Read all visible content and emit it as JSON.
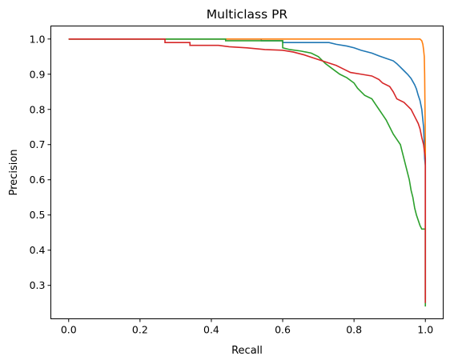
{
  "chart_data": {
    "type": "line",
    "title": "Multiclass PR",
    "xlabel": "Recall",
    "ylabel": "Precision",
    "xlim": [
      -0.05,
      1.05
    ],
    "ylim": [
      0.205,
      1.037
    ],
    "xticks": [
      "0.0",
      "0.2",
      "0.4",
      "0.6",
      "0.8",
      "1.0"
    ],
    "yticks": [
      "0.3",
      "0.4",
      "0.5",
      "0.6",
      "0.7",
      "0.8",
      "0.9",
      "1.0"
    ],
    "grid": false,
    "legend": "none",
    "series": [
      {
        "color": "#1f77b4",
        "points": [
          [
            0.0,
            1.0
          ],
          [
            0.54,
            1.0
          ],
          [
            0.54,
            0.995
          ],
          [
            0.6,
            0.995
          ],
          [
            0.6,
            0.99
          ],
          [
            0.73,
            0.99
          ],
          [
            0.75,
            0.985
          ],
          [
            0.78,
            0.98
          ],
          [
            0.8,
            0.975
          ],
          [
            0.82,
            0.968
          ],
          [
            0.85,
            0.96
          ],
          [
            0.87,
            0.952
          ],
          [
            0.89,
            0.945
          ],
          [
            0.91,
            0.938
          ],
          [
            0.92,
            0.93
          ],
          [
            0.93,
            0.92
          ],
          [
            0.94,
            0.91
          ],
          [
            0.95,
            0.9
          ],
          [
            0.96,
            0.888
          ],
          [
            0.97,
            0.87
          ],
          [
            0.975,
            0.858
          ],
          [
            0.98,
            0.84
          ],
          [
            0.985,
            0.825
          ],
          [
            0.99,
            0.8
          ],
          [
            0.992,
            0.78
          ],
          [
            0.995,
            0.75
          ],
          [
            0.997,
            0.7
          ],
          [
            0.998,
            0.66
          ],
          [
            1.0,
            0.64
          ],
          [
            1.0,
            0.25
          ]
        ]
      },
      {
        "color": "#ff7f0e",
        "points": [
          [
            0.0,
            1.0
          ],
          [
            0.985,
            1.0
          ],
          [
            0.99,
            0.995
          ],
          [
            0.993,
            0.985
          ],
          [
            0.995,
            0.97
          ],
          [
            0.997,
            0.95
          ],
          [
            0.998,
            0.9
          ],
          [
            0.999,
            0.8
          ],
          [
            1.0,
            0.7
          ],
          [
            1.0,
            0.26
          ]
        ]
      },
      {
        "color": "#2ca02c",
        "points": [
          [
            0.0,
            1.0
          ],
          [
            0.44,
            1.0
          ],
          [
            0.44,
            0.995
          ],
          [
            0.6,
            0.995
          ],
          [
            0.6,
            0.975
          ],
          [
            0.62,
            0.97
          ],
          [
            0.65,
            0.966
          ],
          [
            0.68,
            0.96
          ],
          [
            0.7,
            0.95
          ],
          [
            0.72,
            0.93
          ],
          [
            0.74,
            0.915
          ],
          [
            0.76,
            0.9
          ],
          [
            0.78,
            0.89
          ],
          [
            0.8,
            0.875
          ],
          [
            0.81,
            0.86
          ],
          [
            0.82,
            0.85
          ],
          [
            0.83,
            0.84
          ],
          [
            0.85,
            0.83
          ],
          [
            0.86,
            0.815
          ],
          [
            0.87,
            0.8
          ],
          [
            0.88,
            0.785
          ],
          [
            0.89,
            0.77
          ],
          [
            0.9,
            0.75
          ],
          [
            0.91,
            0.73
          ],
          [
            0.92,
            0.715
          ],
          [
            0.93,
            0.7
          ],
          [
            0.935,
            0.68
          ],
          [
            0.94,
            0.66
          ],
          [
            0.945,
            0.64
          ],
          [
            0.95,
            0.62
          ],
          [
            0.955,
            0.6
          ],
          [
            0.96,
            0.57
          ],
          [
            0.965,
            0.55
          ],
          [
            0.97,
            0.52
          ],
          [
            0.975,
            0.5
          ],
          [
            0.985,
            0.47
          ],
          [
            0.99,
            0.46
          ],
          [
            1.0,
            0.46
          ],
          [
            1.0,
            0.24
          ]
        ]
      },
      {
        "color": "#d62728",
        "points": [
          [
            0.0,
            1.0
          ],
          [
            0.27,
            1.0
          ],
          [
            0.27,
            0.99
          ],
          [
            0.34,
            0.99
          ],
          [
            0.34,
            0.982
          ],
          [
            0.42,
            0.982
          ],
          [
            0.45,
            0.978
          ],
          [
            0.5,
            0.975
          ],
          [
            0.55,
            0.97
          ],
          [
            0.6,
            0.968
          ],
          [
            0.63,
            0.963
          ],
          [
            0.66,
            0.955
          ],
          [
            0.69,
            0.945
          ],
          [
            0.72,
            0.935
          ],
          [
            0.75,
            0.925
          ],
          [
            0.77,
            0.915
          ],
          [
            0.79,
            0.905
          ],
          [
            0.82,
            0.9
          ],
          [
            0.85,
            0.895
          ],
          [
            0.87,
            0.885
          ],
          [
            0.88,
            0.875
          ],
          [
            0.9,
            0.865
          ],
          [
            0.91,
            0.85
          ],
          [
            0.92,
            0.83
          ],
          [
            0.94,
            0.82
          ],
          [
            0.95,
            0.81
          ],
          [
            0.96,
            0.8
          ],
          [
            0.97,
            0.78
          ],
          [
            0.98,
            0.76
          ],
          [
            0.985,
            0.745
          ],
          [
            0.99,
            0.72
          ],
          [
            0.995,
            0.7
          ],
          [
            1.0,
            0.66
          ],
          [
            1.0,
            0.25
          ]
        ]
      }
    ]
  }
}
